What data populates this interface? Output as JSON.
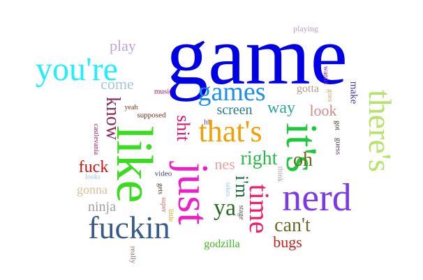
{
  "words": [
    {
      "text": "game",
      "color": "#0000e6"
    },
    {
      "text": "you're",
      "color": "#1ef0ff"
    },
    {
      "text": "play",
      "color": "#c3a3d9"
    },
    {
      "text": "playing",
      "color": "#b6a0c8"
    },
    {
      "text": "come",
      "color": "#a7c6d9"
    },
    {
      "text": "games",
      "color": "#1e90e6"
    },
    {
      "text": "music",
      "color": "#b0105d"
    },
    {
      "text": "wanna",
      "color": "#7a2bd6"
    },
    {
      "text": "gotta",
      "color": "#b59a8a"
    },
    {
      "text": "goes",
      "color": "#c9a96a"
    },
    {
      "text": "make",
      "color": "#4a3aa6"
    },
    {
      "text": "there's",
      "color": "#b6e36a"
    },
    {
      "text": "know",
      "color": "#8a2b5a"
    },
    {
      "text": "yeah",
      "color": "#6a3a1a"
    },
    {
      "text": "supposed",
      "color": "#6a2a1a"
    },
    {
      "text": "screen",
      "color": "#2a7a8a"
    },
    {
      "text": "way",
      "color": "#2aa69a"
    },
    {
      "text": "look",
      "color": "#d08a8a"
    },
    {
      "text": "castlevania",
      "color": "#a0206a"
    },
    {
      "text": "shit",
      "color": "#e0106a"
    },
    {
      "text": "hit",
      "color": "#6a3aa6"
    },
    {
      "text": "that's",
      "color": "#f0a000"
    },
    {
      "text": "it's",
      "color": "#1ec83a"
    },
    {
      "text": "got",
      "color": "#3a3a1a"
    },
    {
      "text": "guess",
      "color": "#4a3a4a"
    },
    {
      "text": "like",
      "color": "#3adc1e"
    },
    {
      "text": "just",
      "color": "#f01ec8"
    },
    {
      "text": "right",
      "color": "#2ab84a"
    },
    {
      "text": "oh",
      "color": "#6a6a1a"
    },
    {
      "text": "fuck",
      "color": "#d01010"
    },
    {
      "text": "nes",
      "color": "#f0a0a0"
    },
    {
      "text": "i'm",
      "color": "#1a6a3a"
    },
    {
      "text": "think",
      "color": "#a0a0a6"
    },
    {
      "text": "video",
      "color": "#3a3a6a"
    },
    {
      "text": "looks",
      "color": "#a0c8e0"
    },
    {
      "text": "gets",
      "color": "#4a3a1a"
    },
    {
      "text": "super",
      "color": "#c86a6a"
    },
    {
      "text": "takes",
      "color": "#a0c8f0"
    },
    {
      "text": "time",
      "color": "#f01e6a"
    },
    {
      "text": "nerd",
      "color": "#7a3ae6"
    },
    {
      "text": "gonna",
      "color": "#d8c09a"
    },
    {
      "text": "ya",
      "color": "#2a6a2a"
    },
    {
      "text": "ninja",
      "color": "#a0a0a0"
    },
    {
      "text": "little",
      "color": "#e0a01e"
    },
    {
      "text": "stage",
      "color": "#4a4a4a"
    },
    {
      "text": "can't",
      "color": "#6a6a2a"
    },
    {
      "text": "fuckin",
      "color": "#3a5a8a"
    },
    {
      "text": "bugs",
      "color": "#c81e1e"
    },
    {
      "text": "godzilla",
      "color": "#3ab81e"
    },
    {
      "text": "really",
      "color": "#8a6a6a"
    }
  ]
}
